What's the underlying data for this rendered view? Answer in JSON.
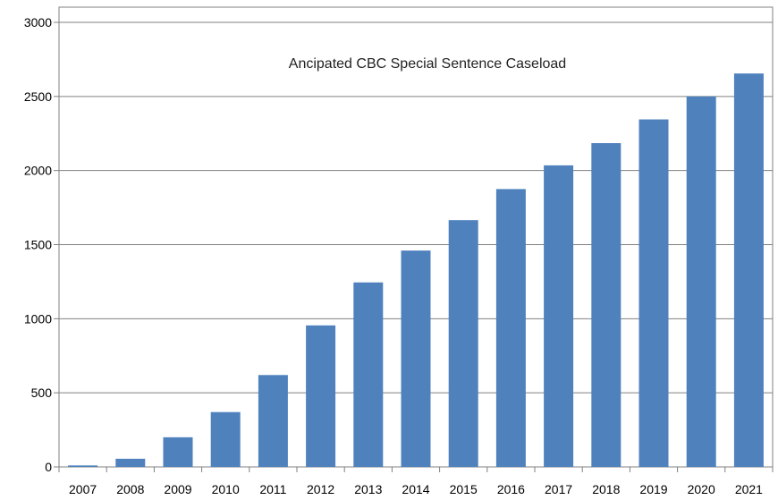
{
  "chart_data": {
    "type": "bar",
    "title": "Ancipated CBC Special Sentence Caseload",
    "xlabel": "",
    "ylabel": "",
    "categories": [
      "2007",
      "2008",
      "2009",
      "2010",
      "2011",
      "2012",
      "2013",
      "2014",
      "2015",
      "2016",
      "2017",
      "2018",
      "2019",
      "2020",
      "2021"
    ],
    "values": [
      10,
      55,
      200,
      370,
      620,
      955,
      1245,
      1460,
      1665,
      1875,
      2035,
      2185,
      2345,
      2500,
      2655
    ],
    "ylim": [
      0,
      3000
    ],
    "yticks": [
      "0",
      "500",
      "1000",
      "1500",
      "2000",
      "2500",
      "3000"
    ],
    "ytick_values": [
      0,
      500,
      1000,
      1500,
      2000,
      2500,
      3000
    ],
    "grid": true,
    "legend": "none",
    "colors": {
      "bar": "#4f81bd",
      "grid": "#808080",
      "axis": "#808080"
    }
  }
}
